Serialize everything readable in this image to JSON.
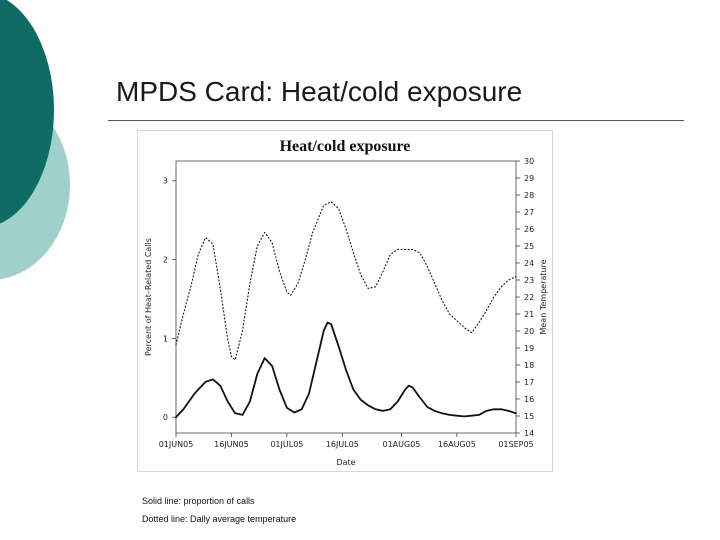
{
  "slide": {
    "title": "MPDS Card: Heat/cold exposure",
    "captions": [
      "Solid line: proportion of calls",
      "Dotted line: Daily average temperature"
    ]
  },
  "colors": {
    "teal_dark": "#0f6b66",
    "teal_light": "#9fd0cc",
    "rule": "#555555"
  },
  "chart_data": {
    "type": "line",
    "title": "Heat/cold  exposure",
    "xlabel": "Date",
    "ylabel": "Percent of Heat–Related Calls",
    "y2label": "Mean Temperature",
    "x_ticks": [
      "01JUN05",
      "16JUN05",
      "01JUL05",
      "16JUL05",
      "01AUG05",
      "16AUG05",
      "01SEP05"
    ],
    "x_tick_days": [
      0,
      15,
      30,
      45,
      61,
      76,
      92
    ],
    "xlim": [
      0,
      92
    ],
    "ylim": [
      -0.2,
      3.25
    ],
    "y_ticks": [
      0,
      1,
      2,
      3
    ],
    "y2lim": [
      14,
      30
    ],
    "y2_ticks": [
      14,
      15,
      16,
      17,
      18,
      19,
      20,
      21,
      22,
      23,
      24,
      25,
      26,
      27,
      28,
      29,
      30
    ],
    "series": [
      {
        "style": "solid",
        "axis": "left",
        "points": [
          [
            0,
            0.0
          ],
          [
            2,
            0.1
          ],
          [
            5,
            0.3
          ],
          [
            8,
            0.45
          ],
          [
            10,
            0.48
          ],
          [
            12,
            0.4
          ],
          [
            14,
            0.2
          ],
          [
            16,
            0.05
          ],
          [
            18,
            0.03
          ],
          [
            20,
            0.2
          ],
          [
            22,
            0.55
          ],
          [
            24,
            0.75
          ],
          [
            26,
            0.65
          ],
          [
            28,
            0.35
          ],
          [
            30,
            0.12
          ],
          [
            32,
            0.06
          ],
          [
            34,
            0.1
          ],
          [
            36,
            0.3
          ],
          [
            38,
            0.7
          ],
          [
            40,
            1.1
          ],
          [
            41,
            1.2
          ],
          [
            42,
            1.18
          ],
          [
            44,
            0.9
          ],
          [
            46,
            0.6
          ],
          [
            48,
            0.35
          ],
          [
            50,
            0.22
          ],
          [
            52,
            0.15
          ],
          [
            54,
            0.1
          ],
          [
            56,
            0.08
          ],
          [
            58,
            0.1
          ],
          [
            60,
            0.2
          ],
          [
            62,
            0.35
          ],
          [
            63,
            0.4
          ],
          [
            64,
            0.38
          ],
          [
            66,
            0.25
          ],
          [
            68,
            0.13
          ],
          [
            70,
            0.08
          ],
          [
            72,
            0.05
          ],
          [
            74,
            0.03
          ],
          [
            76,
            0.02
          ],
          [
            78,
            0.01
          ],
          [
            80,
            0.02
          ],
          [
            82,
            0.03
          ],
          [
            84,
            0.08
          ],
          [
            86,
            0.1
          ],
          [
            88,
            0.1
          ],
          [
            90,
            0.08
          ],
          [
            92,
            0.05
          ]
        ]
      },
      {
        "style": "dotted",
        "axis": "right",
        "points": [
          [
            0,
            19.2
          ],
          [
            2,
            21
          ],
          [
            4,
            22.6
          ],
          [
            6,
            24.5
          ],
          [
            8,
            25.5
          ],
          [
            10,
            25.1
          ],
          [
            12,
            22.5
          ],
          [
            14,
            19.5
          ],
          [
            15,
            18.5
          ],
          [
            16,
            18.3
          ],
          [
            18,
            20
          ],
          [
            20,
            22.8
          ],
          [
            22,
            25
          ],
          [
            24,
            25.8
          ],
          [
            26,
            25.2
          ],
          [
            28,
            23.5
          ],
          [
            30,
            22.3
          ],
          [
            31,
            22.1
          ],
          [
            33,
            22.8
          ],
          [
            35,
            24.2
          ],
          [
            37,
            25.8
          ],
          [
            40,
            27.4
          ],
          [
            42,
            27.6
          ],
          [
            44,
            27.2
          ],
          [
            46,
            26
          ],
          [
            48,
            24.6
          ],
          [
            50,
            23.3
          ],
          [
            52,
            22.5
          ],
          [
            54,
            22.6
          ],
          [
            56,
            23.5
          ],
          [
            58,
            24.5
          ],
          [
            60,
            24.8
          ],
          [
            62,
            24.8
          ],
          [
            64,
            24.8
          ],
          [
            66,
            24.6
          ],
          [
            68,
            23.8
          ],
          [
            70,
            22.8
          ],
          [
            72,
            21.8
          ],
          [
            74,
            21
          ],
          [
            76,
            20.6
          ],
          [
            78,
            20.2
          ],
          [
            80,
            19.9
          ],
          [
            82,
            20.5
          ],
          [
            84,
            21.2
          ],
          [
            86,
            22
          ],
          [
            88,
            22.6
          ],
          [
            90,
            23.0
          ],
          [
            92,
            23.2
          ]
        ]
      }
    ]
  }
}
